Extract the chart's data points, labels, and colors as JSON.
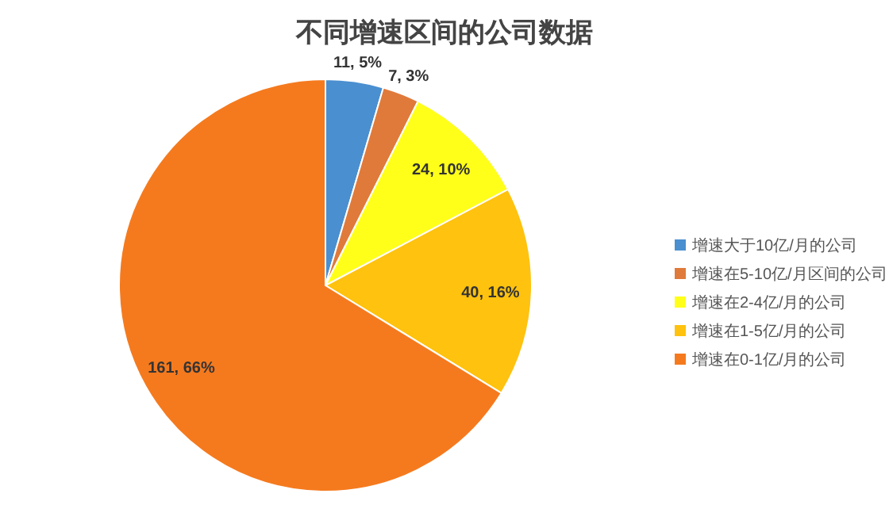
{
  "chart_data": {
    "type": "pie",
    "title": "不同增速区间的公司数据",
    "categories": [
      "增速大于10亿/月的公司",
      "增速在5-10亿/月区间的公司",
      "增速在2-4亿/月的公司",
      "增速在1-5亿/月的公司",
      "增速在0-1亿/月的公司"
    ],
    "values": [
      11,
      7,
      24,
      40,
      161
    ],
    "colors": [
      "#4a8fd0",
      "#e07a3a",
      "#ffff1a",
      "#ffc20e",
      "#f57a1e"
    ],
    "value_labels": [
      "11, 5%",
      "7, 3%",
      "24, 10%",
      "40, 16%",
      "161, 66%"
    ],
    "legend": "right"
  }
}
